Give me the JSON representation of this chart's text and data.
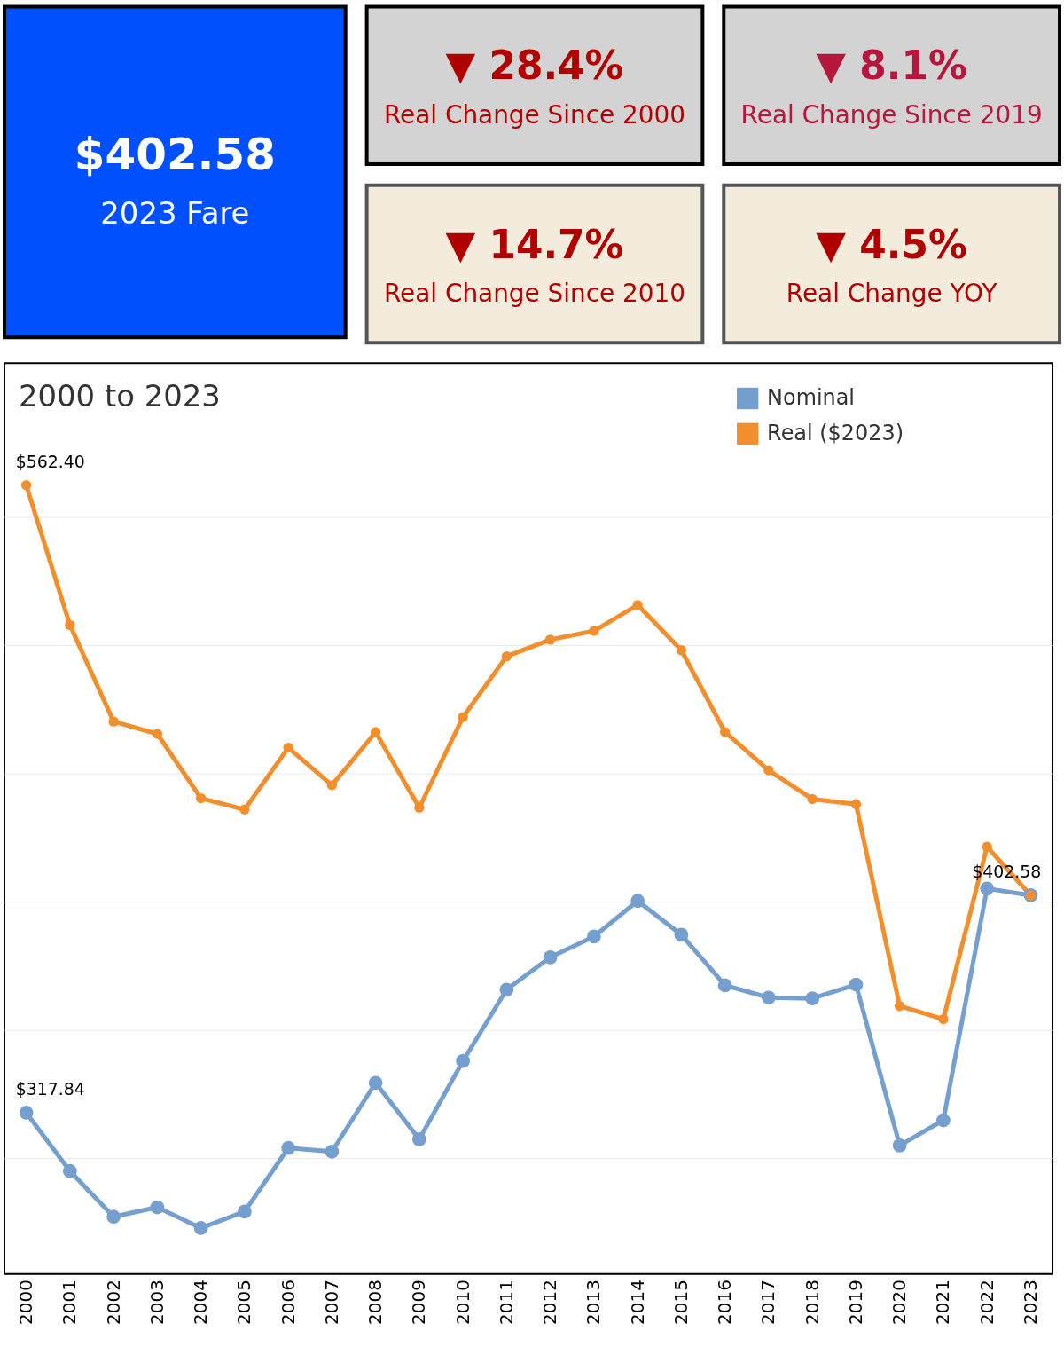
{
  "chart_data": [
    {
      "type": "other",
      "title": "$402.58",
      "subtitle": "2023 Fare",
      "color": "#ffffff"
    },
    {
      "type": "other",
      "title": "▼ 28.4%",
      "subtitle": "Real Change Since 2000",
      "color": "#b00000"
    },
    {
      "type": "other",
      "title": "▼ 8.1%",
      "subtitle": "Real Change Since 2019",
      "color": "#b5173d"
    },
    {
      "type": "other",
      "title": "▼ 14.7%",
      "subtitle": "Real Change Since 2010",
      "color": "#b00000"
    },
    {
      "type": "other",
      "title": "▼ 4.5%",
      "subtitle": "Real Change YOY",
      "color": "#b00000"
    },
    {
      "type": "line",
      "title": "2000 to 2023",
      "categories": [
        "2000",
        "2001",
        "2002",
        "2003",
        "2004",
        "2005",
        "2006",
        "2007",
        "2008",
        "2009",
        "2010",
        "2011",
        "2012",
        "2013",
        "2014",
        "2015",
        "2016",
        "2017",
        "2018",
        "2019",
        "2020",
        "2021",
        "2022",
        "2023"
      ],
      "series": [
        {
          "name": "Nominal",
          "color": "#759fcf",
          "values": [
            317.84,
            295.1,
            277.3,
            281.0,
            272.9,
            279.3,
            304.1,
            302.7,
            329.5,
            307.5,
            338.0,
            365.8,
            378.4,
            386.5,
            400.4,
            387.2,
            367.5,
            362.7,
            362.4,
            367.8,
            305.1,
            314.9,
            405.2,
            402.58
          ],
          "value_labels": [
            "$317.84",
            null,
            null,
            null,
            null,
            null,
            null,
            null,
            null,
            null,
            null,
            null,
            null,
            null,
            null,
            null,
            null,
            null,
            null,
            null,
            null,
            null,
            null,
            null
          ]
        },
        {
          "name": "Real ($2023)",
          "color": "#f28e2b",
          "values": [
            562.4,
            507.9,
            470.3,
            465.5,
            440.4,
            436.0,
            460.1,
            445.5,
            466.2,
            436.7,
            472.0,
            495.7,
            502.2,
            505.6,
            515.7,
            498.1,
            466.2,
            451.3,
            440.1,
            438.1,
            359.4,
            354.3,
            421.5,
            402.58
          ],
          "value_labels": [
            "$562.40",
            null,
            null,
            null,
            null,
            null,
            null,
            null,
            null,
            null,
            null,
            null,
            null,
            null,
            null,
            null,
            null,
            null,
            null,
            null,
            null,
            null,
            null,
            "$402.58"
          ]
        }
      ],
      "ylim": [
        255,
        610
      ],
      "yticks": [
        {
          "value": 300,
          "label": null
        },
        {
          "value": 350,
          "label": null
        },
        {
          "value": 400,
          "label": null
        },
        {
          "value": 450,
          "label": null
        },
        {
          "value": 500,
          "label": null
        },
        {
          "value": 550,
          "label": null
        }
      ],
      "grid": "y",
      "legend": "top right",
      "tick_labels": "x",
      "marker": "circle",
      "line_style": "solid"
    }
  ]
}
